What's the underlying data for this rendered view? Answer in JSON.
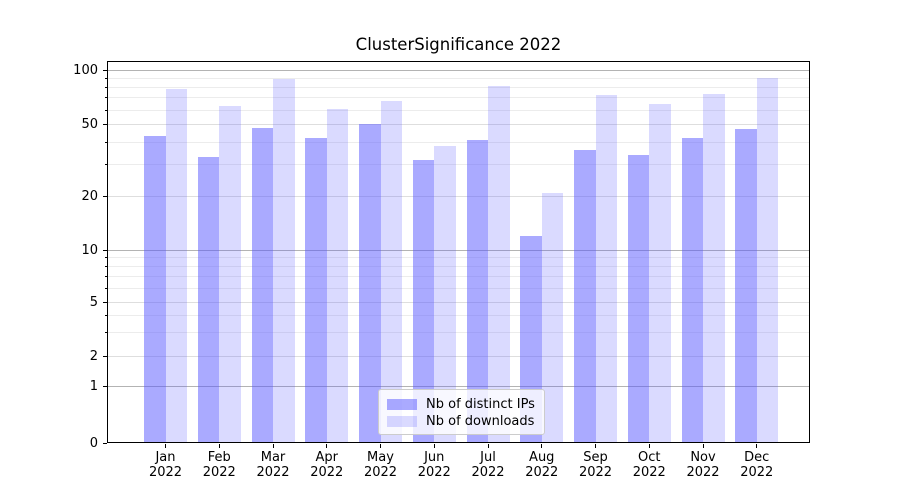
{
  "chart_data": {
    "type": "bar",
    "title": "ClusterSignificance 2022",
    "year": "2022",
    "categories": [
      "Jan",
      "Feb",
      "Mar",
      "Apr",
      "May",
      "Jun",
      "Jul",
      "Aug",
      "Sep",
      "Oct",
      "Nov",
      "Dec"
    ],
    "series": [
      {
        "name": "Nb of distinct IPs",
        "color": "rgba(85,85,255,0.50)",
        "values": [
          43,
          33,
          48,
          42,
          50,
          32,
          41,
          12,
          36,
          34,
          42,
          47
        ]
      },
      {
        "name": "Nb of downloads",
        "color": "rgba(85,85,255,0.22)",
        "values": [
          78,
          63,
          89,
          61,
          67,
          38,
          82,
          21,
          73,
          65,
          74,
          90
        ]
      }
    ],
    "xlabel": "",
    "ylabel": "",
    "yscale": "symlog",
    "y_tick_labels": [
      "100",
      "50",
      "20",
      "10",
      "5",
      "2",
      "1",
      "0"
    ],
    "y_tick_values": [
      100,
      50,
      20,
      10,
      5,
      2,
      1,
      0
    ],
    "ylim": [
      0,
      112
    ],
    "grid": true,
    "legend_position": "lower center",
    "colors": {
      "accent_base": "#5555ff",
      "grid_major": "#b3b3b3",
      "grid_minor": "#ececec"
    }
  }
}
